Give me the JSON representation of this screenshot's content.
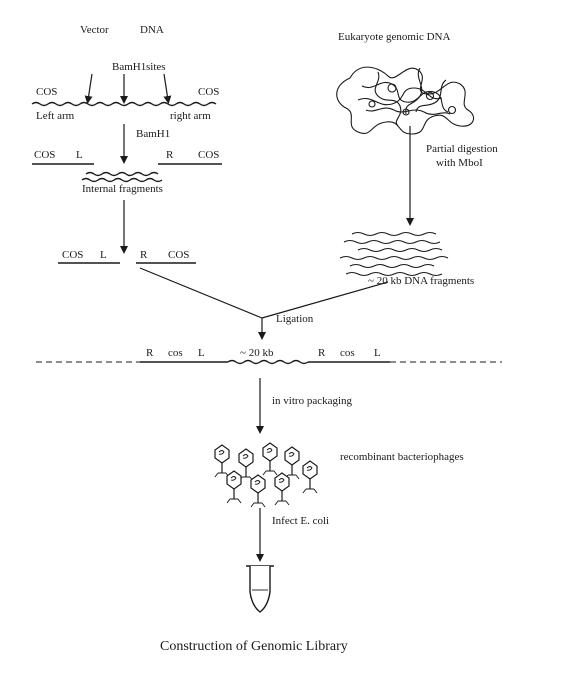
{
  "labels": {
    "vector": "Vector",
    "dna": "DNA",
    "eukaryote": "Eukaryote genomic DNA",
    "bamh1_top": "BamH1",
    "sites": "sites",
    "cos_left": "COS",
    "cos_right": "COS",
    "left_arm": "Left arm",
    "right_arm": "right arm",
    "bamh1_mid": "BamH1",
    "cos_a": "COS",
    "l_a": "L",
    "r_a": "R",
    "cos_b": "COS",
    "internal": "Internal fragments",
    "partial1": "Partial digestion",
    "partial2": "with MboI",
    "cos_c": "COS",
    "l_c": "L",
    "r_c": "R",
    "cos_d": "COS",
    "fragments": "~ 20 kb DNA fragments",
    "ligation": "Ligation",
    "lig_r1": "R",
    "lig_cos1": "cos",
    "lig_l1": "L",
    "lig_20kb": "~ 20 kb",
    "lig_r2": "R",
    "lig_cos2": "cos",
    "lig_l2": "L",
    "packaging": "in vitro packaging",
    "recombinant": "recombinant bacteriophages",
    "infect": "Infect E. coli",
    "caption": "Construction of Genomic Library"
  },
  "icons": {
    "phage": "bacteriophage-icon",
    "tube": "test-tube-icon",
    "genomic": "genomic-dna-tangle-icon"
  }
}
